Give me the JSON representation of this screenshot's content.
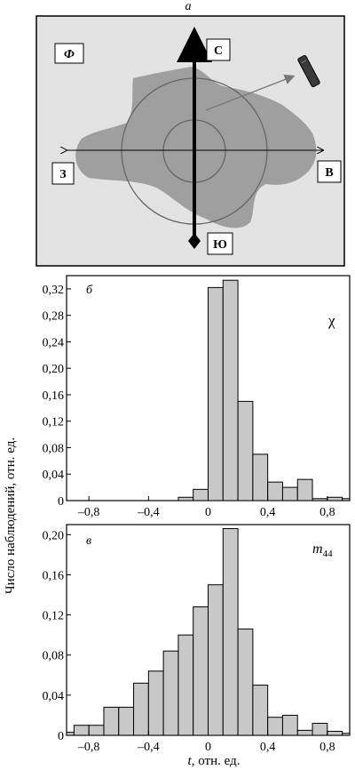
{
  "panel_a": {
    "label": "а",
    "phi": "Ф",
    "north": "С",
    "south": "Ю",
    "west": "З",
    "east": "В"
  },
  "y_axis_label": "Число наблюдений, отн. ед.",
  "x_axis_label_italic": "t",
  "x_axis_label_rest": ", отн. ед.",
  "chart_data": [
    {
      "type": "bar",
      "panel_label": "б",
      "annotation": "χ",
      "bin_width": 0.1,
      "xlim": [
        -0.95,
        0.95
      ],
      "ylim": [
        0,
        0.34
      ],
      "xticks": [
        -0.8,
        -0.4,
        0,
        0.4,
        0.8
      ],
      "xtick_labels": [
        "–0,8",
        "–0,4",
        "0",
        "0,4",
        "0,8"
      ],
      "yticks": [
        0,
        0.04,
        0.08,
        0.12,
        0.16,
        0.2,
        0.24,
        0.28,
        0.32
      ],
      "ytick_labels": [
        "0",
        "0,04",
        "0,08",
        "0,12",
        "0,16",
        "0,20",
        "0,24",
        "0,28",
        "0,32"
      ],
      "bin_centers": [
        -0.15,
        -0.05,
        0.05,
        0.15,
        0.25,
        0.35,
        0.45,
        0.55,
        0.65,
        0.75,
        0.85,
        0.95
      ],
      "values": [
        0.005,
        0.017,
        0.322,
        0.333,
        0.15,
        0.07,
        0.028,
        0.02,
        0.032,
        0.003,
        0.005,
        0.003
      ]
    },
    {
      "type": "bar",
      "panel_label": "в",
      "annotation_base": "m",
      "annotation_sub": "44",
      "bin_width": 0.1,
      "xlim": [
        -0.95,
        0.95
      ],
      "ylim": [
        0,
        0.21
      ],
      "xticks": [
        -0.8,
        -0.4,
        0,
        0.4,
        0.8
      ],
      "xtick_labels": [
        "–0,8",
        "–0,4",
        "0",
        "0,4",
        "0,8"
      ],
      "yticks": [
        0,
        0.04,
        0.08,
        0.12,
        0.16,
        0.2
      ],
      "ytick_labels": [
        "0",
        "0,04",
        "0,08",
        "0,12",
        "0,16",
        "0,20"
      ],
      "bin_centers": [
        -0.95,
        -0.85,
        -0.75,
        -0.65,
        -0.55,
        -0.45,
        -0.35,
        -0.25,
        -0.15,
        -0.05,
        0.05,
        0.15,
        0.25,
        0.35,
        0.45,
        0.55,
        0.65,
        0.75,
        0.85,
        0.95
      ],
      "values": [
        0.003,
        0.01,
        0.01,
        0.028,
        0.028,
        0.052,
        0.064,
        0.084,
        0.1,
        0.128,
        0.15,
        0.206,
        0.106,
        0.05,
        0.018,
        0.02,
        0.005,
        0.012,
        0.004,
        0.002
      ]
    }
  ]
}
